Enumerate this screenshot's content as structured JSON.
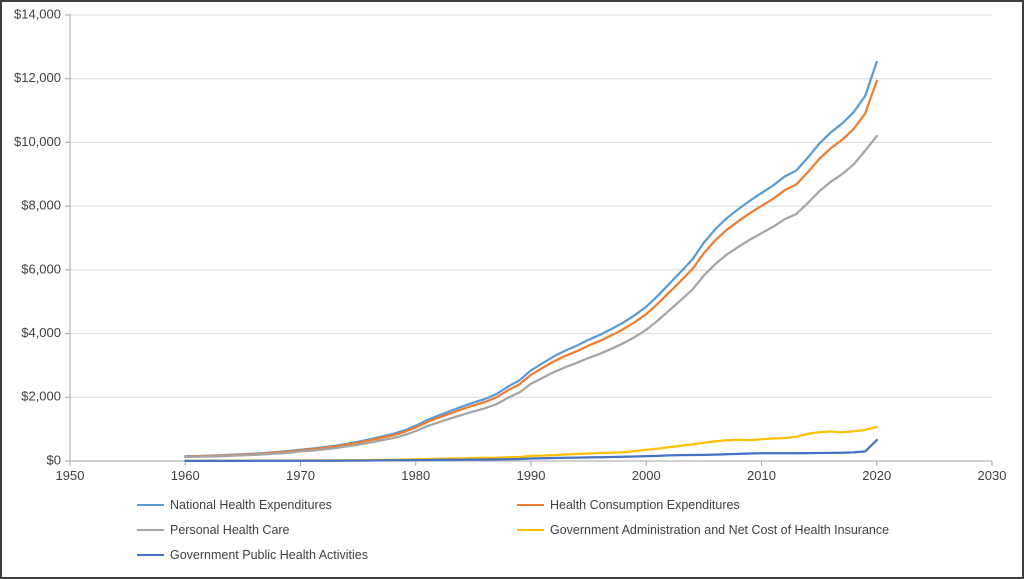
{
  "chart_data": {
    "type": "line",
    "title": "",
    "xlabel": "",
    "ylabel": "",
    "xlim": [
      1950,
      2030
    ],
    "ylim": [
      0,
      14000
    ],
    "x_tick_labels": [
      "1950",
      "1960",
      "1970",
      "1980",
      "1990",
      "2000",
      "2010",
      "2020",
      "2030"
    ],
    "x_tick_values": [
      1950,
      1960,
      1970,
      1980,
      1990,
      2000,
      2010,
      2020,
      2030
    ],
    "y_tick_labels": [
      "$0",
      "$2,000",
      "$4,000",
      "$6,000",
      "$8,000",
      "$10,000",
      "$12,000",
      "$14,000"
    ],
    "y_tick_values": [
      0,
      2000,
      4000,
      6000,
      8000,
      10000,
      12000,
      14000
    ],
    "grid": "horizontal",
    "legend_position": "bottom",
    "x": [
      1960,
      1961,
      1962,
      1963,
      1964,
      1965,
      1966,
      1967,
      1968,
      1969,
      1970,
      1971,
      1972,
      1973,
      1974,
      1975,
      1976,
      1977,
      1978,
      1979,
      1980,
      1981,
      1982,
      1983,
      1984,
      1985,
      1986,
      1987,
      1988,
      1989,
      1990,
      1991,
      1992,
      1993,
      1994,
      1995,
      1996,
      1997,
      1998,
      1999,
      2000,
      2001,
      2002,
      2003,
      2004,
      2005,
      2006,
      2007,
      2008,
      2009,
      2010,
      2011,
      2012,
      2013,
      2014,
      2015,
      2016,
      2017,
      2018,
      2019,
      2020
    ],
    "series": [
      {
        "name": "National Health Expenditures",
        "color": "#5B9BD5",
        "values": [
          146,
          154,
          166,
          178,
          194,
          209,
          228,
          253,
          281,
          313,
          353,
          388,
          431,
          478,
          540,
          605,
          682,
          763,
          849,
          956,
          1108,
          1286,
          1432,
          1570,
          1704,
          1833,
          1947,
          2099,
          2331,
          2533,
          2843,
          3070,
          3287,
          3468,
          3625,
          3806,
          3964,
          4147,
          4345,
          4576,
          4845,
          5187,
          5563,
          5937,
          6328,
          6855,
          7280,
          7628,
          7911,
          8175,
          8412,
          8644,
          8927,
          9115,
          9515,
          9956,
          10308,
          10594,
          10953,
          11462,
          12530
        ]
      },
      {
        "name": "Health Consumption Expenditures",
        "color": "#ED7D31",
        "values": [
          139,
          147,
          158,
          170,
          185,
          199,
          217,
          241,
          268,
          298,
          336,
          369,
          410,
          455,
          514,
          576,
          649,
          726,
          808,
          910,
          1055,
          1224,
          1363,
          1494,
          1622,
          1745,
          1853,
          1998,
          2219,
          2411,
          2706,
          2922,
          3129,
          3301,
          3451,
          3623,
          3773,
          3948,
          4136,
          4356,
          4612,
          4938,
          5295,
          5652,
          6024,
          6525,
          6930,
          7261,
          7531,
          7782,
          8007,
          8228,
          8497,
          8677,
          9057,
          9477,
          9812,
          10084,
          10426,
          10910,
          11936
        ]
      },
      {
        "name": "Personal Health Care",
        "color": "#A5A5A5",
        "values": [
          125,
          132,
          141,
          151,
          165,
          178,
          193,
          212,
          235,
          262,
          300,
          328,
          364,
          404,
          457,
          512,
          578,
          646,
          719,
          810,
          942,
          1093,
          1217,
          1334,
          1448,
          1558,
          1655,
          1784,
          1981,
          2153,
          2425,
          2609,
          2794,
          2948,
          3081,
          3235,
          3369,
          3526,
          3694,
          3890,
          4121,
          4410,
          4729,
          5047,
          5379,
          5827,
          6188,
          6484,
          6725,
          6949,
          7150,
          7348,
          7588,
          7749,
          8088,
          8463,
          8762,
          9005,
          9310,
          9742,
          10202
        ]
      },
      {
        "name": "Government Administration and Net Cost of Health Insurance",
        "color": "#FFC000",
        "values": [
          7,
          7,
          8,
          9,
          10,
          11,
          11,
          12,
          13,
          14,
          15,
          17,
          19,
          21,
          24,
          27,
          30,
          34,
          38,
          44,
          53,
          61,
          68,
          77,
          83,
          95,
          100,
          102,
          115,
          125,
          160,
          170,
          185,
          205,
          220,
          235,
          250,
          260,
          275,
          310,
          352,
          390,
          435,
          480,
          520,
          570,
          620,
          650,
          665,
          655,
          682,
          705,
          720,
          760,
          850,
          905,
          925,
          905,
          935,
          975,
          1070
        ]
      },
      {
        "name": "Government Public Health Activities",
        "color": "#4472C4",
        "values": [
          2,
          2,
          3,
          3,
          4,
          4,
          5,
          5,
          6,
          6,
          7,
          8,
          9,
          10,
          12,
          14,
          16,
          18,
          21,
          24,
          28,
          31,
          34,
          37,
          40,
          44,
          47,
          51,
          56,
          62,
          80,
          87,
          94,
          100,
          106,
          112,
          118,
          125,
          133,
          142,
          154,
          160,
          175,
          184,
          188,
          191,
          200,
          210,
          222,
          235,
          246,
          244,
          245,
          242,
          248,
          250,
          255,
          260,
          270,
          300,
          659
        ]
      }
    ],
    "styles": {
      "grid_color": "#D9D9D9",
      "axis_color": "#A6A6A6",
      "tick_label_color": "#404040",
      "frame_border_color": "#3f3f3f",
      "background": "#FFFFFF"
    }
  }
}
